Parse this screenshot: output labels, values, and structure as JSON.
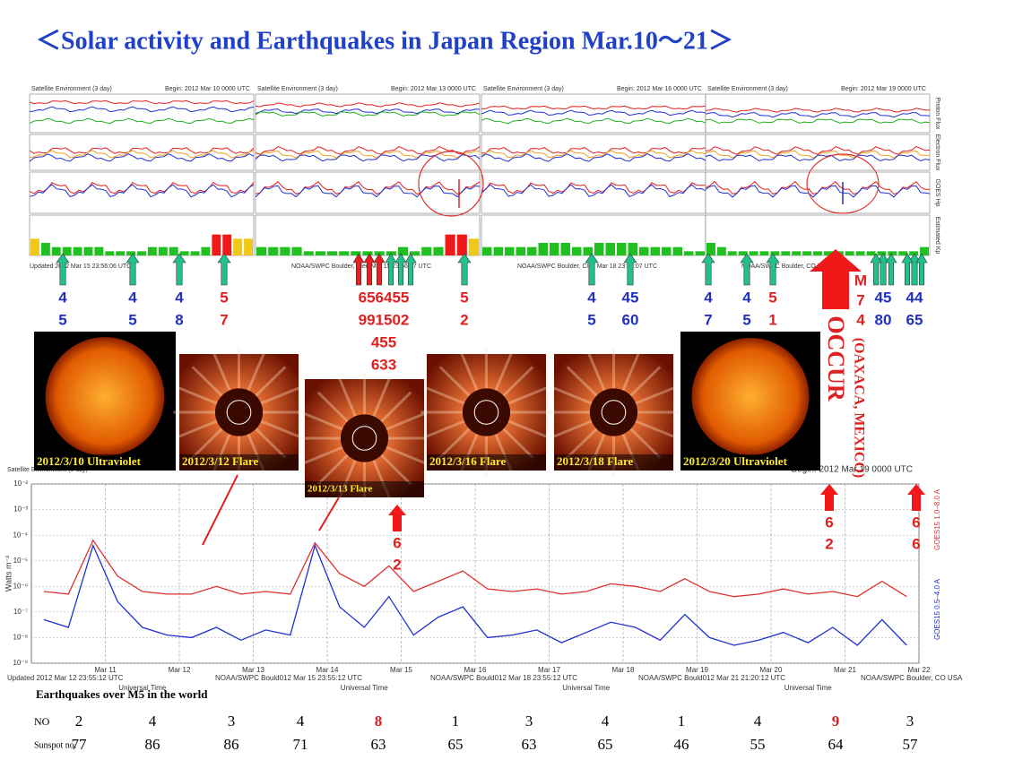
{
  "title": "＜Solar activity and Earthquakes  in Japan Region Mar.10～21＞",
  "upper_panel": {
    "header": "Satellite Environment (3 day)",
    "begins": [
      "Begin: 2012 Mar 10 0000 UTC",
      "Begin: 2012 Mar 13 0000 UTC",
      "Begin: 2012 Mar 16 0000 UTC",
      "Begin: 2012 Mar 19 0000 UTC"
    ],
    "side_labels": [
      "Proton Flux",
      "Electron Flux",
      "GOES Hp",
      "Estimated Kp"
    ],
    "footers": [
      "Updated 2012 Mar 15 23:56:06 UTC",
      "NOAA/SWPC Boulder, Cled Mar 15 23:56:07 UTC",
      "NOAA/SWPC Boulder, Cled Mar 18 23:56:07 UTC",
      "NOAA/SWPC Boulder, CO USA"
    ],
    "kp": [
      [
        4,
        3,
        2,
        2,
        2,
        2,
        2,
        1,
        1,
        1,
        1,
        2,
        2,
        2,
        1,
        1,
        2,
        5,
        5,
        4,
        4
      ],
      [
        2,
        2,
        2,
        2,
        1,
        1,
        1,
        1,
        1,
        1,
        1,
        1,
        2,
        1,
        2,
        2,
        5,
        5,
        4
      ],
      [
        2,
        2,
        2,
        2,
        2,
        3,
        3,
        3,
        2,
        2,
        3,
        3,
        3,
        3,
        2,
        2,
        2,
        2,
        1,
        1
      ],
      [
        3,
        2,
        1,
        1,
        1,
        1,
        1,
        1,
        1,
        1,
        1,
        1,
        1,
        1,
        1,
        1,
        1,
        1,
        1,
        1,
        2
      ]
    ]
  },
  "quake_markers": [
    {
      "lines": [
        "4",
        "5"
      ],
      "color": "blue"
    },
    {
      "lines": [
        "4",
        "5"
      ],
      "color": "blue"
    },
    {
      "lines": [
        "4",
        "8"
      ],
      "color": "blue"
    },
    {
      "lines": [
        "5",
        "7"
      ],
      "color": "red"
    },
    {
      "lines": [
        "656455",
        "991502",
        "455",
        "633"
      ],
      "color": "red"
    },
    {
      "lines": [
        "5",
        "2"
      ],
      "color": "red"
    },
    {
      "lines": [
        "4",
        "5"
      ],
      "color": "blue"
    },
    {
      "lines": [
        "45",
        "60"
      ],
      "color": "blue"
    },
    {
      "lines": [
        "4",
        "7"
      ],
      "color": "blue"
    },
    {
      "lines": [
        "4",
        "5"
      ],
      "color": "blue"
    },
    {
      "lines": [
        "5",
        "1"
      ],
      "color": "red"
    },
    {
      "lines": [
        "45",
        "80"
      ],
      "color": "blue"
    },
    {
      "lines": [
        "44",
        "65"
      ],
      "color": "blue"
    }
  ],
  "images": [
    {
      "caption": "2012/3/10 Ultraviolet",
      "kind": "sun"
    },
    {
      "caption": "2012/3/12 Flare",
      "kind": "corona"
    },
    {
      "caption": "2012/3/13 Flare",
      "kind": "corona"
    },
    {
      "caption": "2012/3/16  Flare",
      "kind": "corona"
    },
    {
      "caption": "2012/3/18 Flare",
      "kind": "corona"
    },
    {
      "caption": "2012/3/20 Ultraviolet",
      "kind": "sun"
    }
  ],
  "occur": {
    "text": "OCCUR",
    "place": "(OAXACA, MEXICO)",
    "mag": [
      "M",
      "7",
      "4"
    ]
  },
  "alerts": [
    {
      "lines": [
        "6",
        "2"
      ]
    },
    {
      "lines": [
        "6",
        "2"
      ]
    },
    {
      "lines": [
        "6",
        "6"
      ]
    }
  ],
  "xray": {
    "ylabel": "Watts m⁻²",
    "begin": "Begin: 2012 Mar 19 0000 UTC",
    "xlabel": "Universal Time",
    "ylim": [
      -9,
      -2
    ],
    "yticks": [
      {
        "value": -9,
        "label": "10⁻⁹"
      },
      {
        "value": -8,
        "label": "10⁻⁸"
      },
      {
        "value": -7,
        "label": "10⁻⁷"
      },
      {
        "value": -6,
        "label": "10⁻⁶"
      },
      {
        "value": -5,
        "label": "10⁻⁵"
      },
      {
        "value": -4,
        "label": "10⁻⁴"
      },
      {
        "value": -3,
        "label": "10⁻³"
      },
      {
        "value": -2,
        "label": "10⁻²"
      }
    ],
    "days": [
      "Mar 11",
      "Mar 12",
      "Mar 13",
      "Mar 14",
      "Mar 15",
      "Mar 16",
      "Mar 17",
      "Mar 18",
      "Mar 19",
      "Mar 20",
      "Mar 21",
      "Mar 22"
    ],
    "series": [
      {
        "name": "GOES15 1.0–8.0 A",
        "color": "#e03030",
        "values": [
          -6.2,
          -6.3,
          -4.2,
          -5.6,
          -6.2,
          -6.3,
          -6.3,
          -6.0,
          -6.3,
          -6.2,
          -6.3,
          -4.3,
          -5.5,
          -6.0,
          -5.2,
          -6.2,
          -5.8,
          -5.4,
          -6.1,
          -6.2,
          -6.1,
          -6.3,
          -6.2,
          -5.9,
          -6.0,
          -6.2,
          -5.7,
          -6.2,
          -6.4,
          -6.3,
          -6.1,
          -6.3,
          -6.2,
          -6.4,
          -5.8,
          -6.4
        ]
      },
      {
        "name": "GOES15 0.5–4.0 A",
        "color": "#2030d0",
        "values": [
          -7.3,
          -7.6,
          -4.4,
          -6.6,
          -7.6,
          -7.9,
          -8.0,
          -7.6,
          -8.1,
          -7.7,
          -7.9,
          -4.4,
          -6.8,
          -7.6,
          -6.4,
          -7.9,
          -7.2,
          -6.8,
          -8.0,
          -7.9,
          -7.7,
          -8.2,
          -7.8,
          -7.4,
          -7.6,
          -8.1,
          -7.1,
          -8.0,
          -8.3,
          -8.1,
          -7.8,
          -8.2,
          -7.6,
          -8.3,
          -7.3,
          -8.3
        ]
      }
    ],
    "footers": [
      "Updated 2012 Mar 12 23:55:12 UTC",
      "NOAA/SWPC Bould012 Mar 15 23:55:12 UTC",
      "NOAA/SWPC Bould012 Mar 18 23:55:12 UTC",
      "NOAA/SWPC Bould012 Mar 21 21:20:12 UTC",
      "NOAA/SWPC Boulder, CO USA"
    ]
  },
  "table": {
    "title": "Earthquakes  over  M5  in the world",
    "red_cols": [
      4,
      10
    ],
    "rows": [
      {
        "label": "NO",
        "values": [
          2,
          4,
          3,
          4,
          8,
          1,
          3,
          4,
          1,
          4,
          9,
          3
        ]
      },
      {
        "label": "Sunspot no.",
        "values": [
          77,
          86,
          86,
          71,
          63,
          65,
          63,
          65,
          46,
          55,
          64,
          57
        ]
      }
    ]
  }
}
